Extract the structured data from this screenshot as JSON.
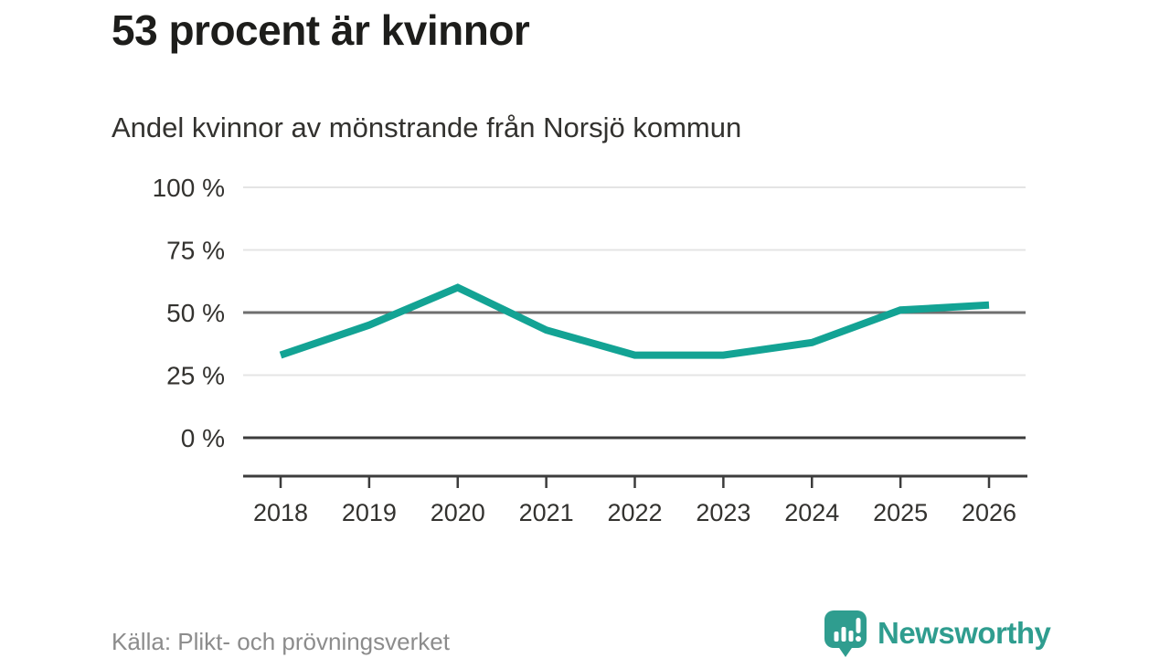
{
  "header": {
    "title": "53 procent är kvinnor",
    "subtitle": "Andel kvinnor av mönstrande från Norsjö kommun"
  },
  "chart_data": {
    "type": "line",
    "title": "53 procent är kvinnor",
    "subtitle": "Andel kvinnor av mönstrande från Norsjö kommun",
    "x": [
      2018,
      2019,
      2020,
      2021,
      2022,
      2023,
      2024,
      2025,
      2026
    ],
    "series": [
      {
        "name": "Andel kvinnor av mönstrande",
        "values": [
          33,
          45,
          60,
          43,
          33,
          33,
          38,
          51,
          53
        ]
      }
    ],
    "unit": "%",
    "ylim": [
      0,
      100
    ],
    "yticks": [
      0,
      25,
      50,
      75,
      100
    ],
    "ytick_label_suffix": " %",
    "grid": "horizontal",
    "emphasized_gridlines": [
      0,
      50
    ],
    "legend": "none"
  },
  "footer": {
    "source": "Källa: Plikt- och prövningsverket",
    "brand": "Newsworthy",
    "logo_icon": "speech-bubble-bar-chart-exclamation-icon"
  },
  "colors": {
    "accent": "#13a394",
    "logo": "#2f9d8f",
    "title": "#1d1d1b",
    "text": "#33322f",
    "muted": "#8c8c8c",
    "grid_light": "#e4e4e4",
    "grid_mid": "#6e6e6e",
    "grid_dark": "#3c3c3c",
    "background": "#ffffff"
  }
}
